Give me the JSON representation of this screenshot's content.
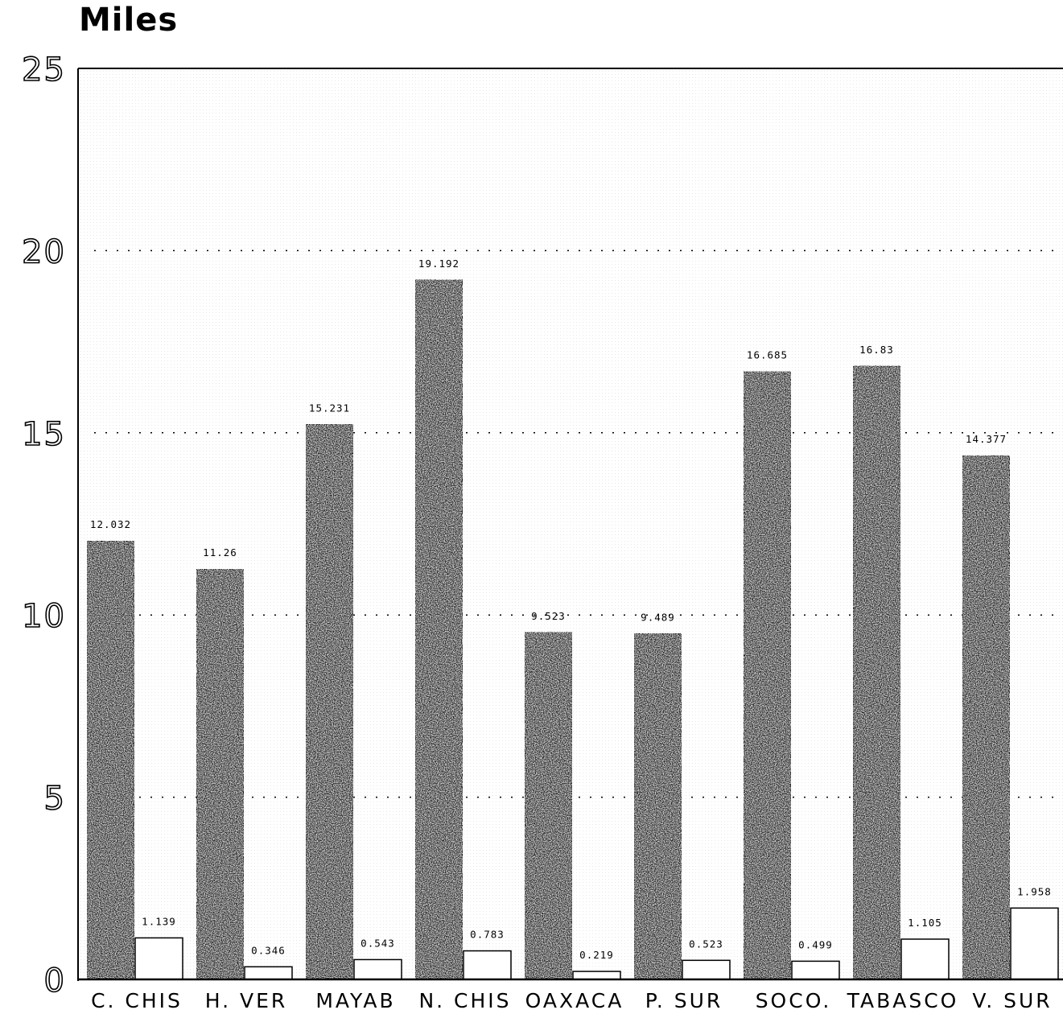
{
  "chart_data": {
    "type": "bar",
    "ylabel": "Miles",
    "ylim": [
      0,
      25
    ],
    "yticks": [
      "0",
      "5",
      "10",
      "15",
      "20",
      "25"
    ],
    "grid": "horizontal dotted",
    "categories": [
      "C. CHIS",
      "H. VER",
      "MAYAB",
      "N. CHIS",
      "OAXACA",
      "P. SUR",
      "SOCO.",
      "TABASCO",
      "V. SUR"
    ],
    "series": [
      {
        "values": [
          12.032,
          11.26,
          15.231,
          19.192,
          9.523,
          9.489,
          16.685,
          16.83,
          14.377
        ],
        "labels": [
          "12.032",
          "11.26",
          "15.231",
          "19.192",
          "9.523",
          "9.489",
          "16.685",
          "16.83",
          "14.377"
        ],
        "fill": "textured-dark",
        "color": "#2a2a2a"
      },
      {
        "values": [
          1.139,
          0.346,
          0.543,
          0.783,
          0.219,
          0.523,
          0.499,
          1.105,
          1.958
        ],
        "labels": [
          "1.139",
          "0.346",
          "0.543",
          "0.783",
          "0.219",
          "0.523",
          "0.499",
          "1.105",
          "1.958"
        ],
        "fill": "white",
        "color": "#ffffff"
      }
    ]
  }
}
